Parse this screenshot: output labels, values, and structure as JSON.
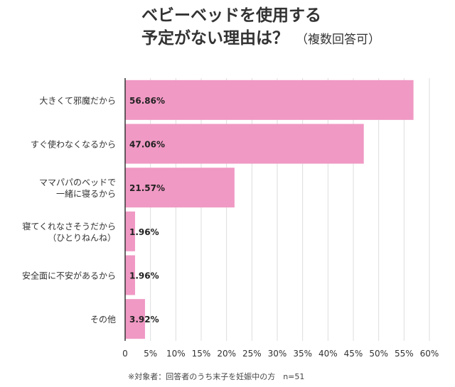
{
  "title": {
    "line1": "ベビーベッドを使用する",
    "line2": "予定がない理由は？",
    "note": "（複数回答可）"
  },
  "footnote": "※対象者：回答者のうち末子を妊娠中の方　n=51",
  "colors": {
    "bar": "#f099c4",
    "grid": "#dddddd",
    "axis": "#333333"
  },
  "chart_data": {
    "type": "bar",
    "orientation": "horizontal",
    "title": "ベビーベッドを使用する予定がない理由は？（複数回答可）",
    "categories": [
      [
        "大きくて邪魔だから"
      ],
      [
        "すぐ使わなくなるから"
      ],
      [
        "ママパパのベッドで",
        "一緒に寝るから"
      ],
      [
        "寝てくれなさそうだから",
        "（ひとりねんね）"
      ],
      [
        "安全面に不安があるから"
      ],
      [
        "その他"
      ]
    ],
    "values": [
      56.86,
      47.06,
      21.57,
      1.96,
      1.96,
      3.92
    ],
    "value_labels": [
      "56.86%",
      "47.06%",
      "21.57%",
      "1.96%",
      "1.96%",
      "3.92%"
    ],
    "xlim": [
      0,
      60
    ],
    "ticks": [
      0,
      5,
      10,
      15,
      20,
      25,
      30,
      35,
      40,
      45,
      50,
      55,
      60
    ],
    "tick_labels": [
      "0",
      "5%",
      "10%",
      "15%",
      "20%",
      "25%",
      "30%",
      "35%",
      "40%",
      "45%",
      "50%",
      "55%",
      "60%"
    ],
    "grid": true
  }
}
